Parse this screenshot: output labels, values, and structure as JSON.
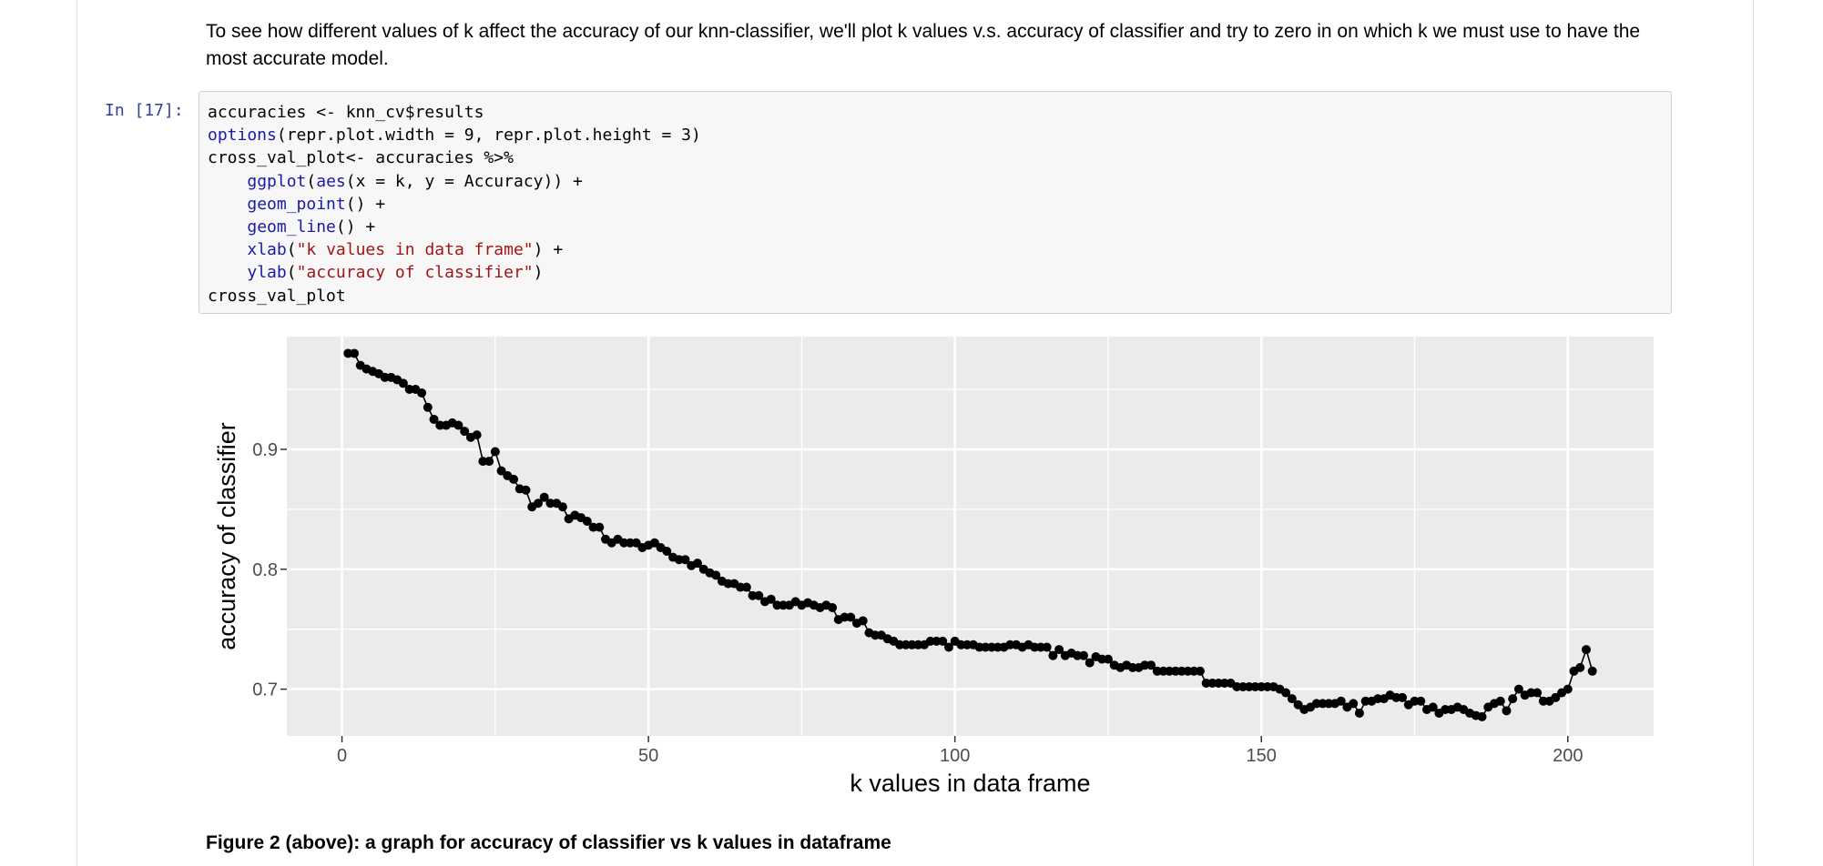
{
  "markdown": {
    "text": "To see how different values of k affect the accuracy of our knn-classifier, we'll plot k values v.s. accuracy of classifier and try to zero in on which k we must use to have the most accurate model."
  },
  "cell": {
    "prompt": "In [17]:",
    "lines": [
      [
        {
          "text": "accuracies <- knn_cv$results"
        }
      ],
      [
        {
          "text": "options",
          "style": "function"
        },
        {
          "text": "(repr.plot.width = 9, repr.plot.height = 3)"
        }
      ],
      [
        {
          "text": "cross_val_plot<- accuracies %>%"
        }
      ],
      [
        {
          "text": "    "
        },
        {
          "text": "ggplot",
          "style": "function"
        },
        {
          "text": "("
        },
        {
          "text": "aes",
          "style": "function"
        },
        {
          "text": "(x = k, y = Accuracy)) +"
        }
      ],
      [
        {
          "text": "    "
        },
        {
          "text": "geom_point",
          "style": "function"
        },
        {
          "text": "() +"
        }
      ],
      [
        {
          "text": "    "
        },
        {
          "text": "geom_line",
          "style": "function"
        },
        {
          "text": "() +"
        }
      ],
      [
        {
          "text": "    "
        },
        {
          "text": "xlab",
          "style": "function"
        },
        {
          "text": "("
        },
        {
          "text": "\"k values in data frame\"",
          "style": "string"
        },
        {
          "text": ") +"
        }
      ],
      [
        {
          "text": "    "
        },
        {
          "text": "ylab",
          "style": "function"
        },
        {
          "text": "("
        },
        {
          "text": "\"accuracy of classifier\"",
          "style": "string"
        },
        {
          "text": ")"
        }
      ],
      [
        {
          "text": "cross_val_plot"
        }
      ]
    ]
  },
  "chart_data": {
    "type": "line",
    "x_label": "k values in data frame",
    "y_label": "accuracy of classifier",
    "xlim": [
      -9,
      214
    ],
    "ylim": [
      0.661,
      0.994
    ],
    "xticks": [
      0,
      50,
      100,
      150,
      200
    ],
    "yticks": [
      0.7,
      0.8,
      0.9
    ],
    "grid": true,
    "color": "#000000",
    "x": [
      1,
      2,
      3,
      4,
      5,
      6,
      7,
      8,
      9,
      10,
      11,
      12,
      13,
      14,
      15,
      16,
      17,
      18,
      19,
      20,
      21,
      22,
      23,
      24,
      25,
      26,
      27,
      28,
      29,
      30,
      31,
      32,
      33,
      34,
      35,
      36,
      37,
      38,
      39,
      40,
      41,
      42,
      43,
      44,
      45,
      46,
      47,
      48,
      49,
      50,
      51,
      52,
      53,
      54,
      55,
      56,
      57,
      58,
      59,
      60,
      61,
      62,
      63,
      64,
      65,
      66,
      67,
      68,
      69,
      70,
      71,
      72,
      73,
      74,
      75,
      76,
      77,
      78,
      79,
      80,
      81,
      82,
      83,
      84,
      85,
      86,
      87,
      88,
      89,
      90,
      91,
      92,
      93,
      94,
      95,
      96,
      97,
      98,
      99,
      100,
      101,
      102,
      103,
      104,
      105,
      106,
      107,
      108,
      109,
      110,
      111,
      112,
      113,
      114,
      115,
      116,
      117,
      118,
      119,
      120,
      121,
      122,
      123,
      124,
      125,
      126,
      127,
      128,
      129,
      130,
      131,
      132,
      133,
      134,
      135,
      136,
      137,
      138,
      139,
      140,
      141,
      142,
      143,
      144,
      145,
      146,
      147,
      148,
      149,
      150,
      151,
      152,
      153,
      154,
      155,
      156,
      157,
      158,
      159,
      160,
      161,
      162,
      163,
      164,
      165,
      166,
      167,
      168,
      169,
      170,
      171,
      172,
      173,
      174,
      175,
      176,
      177,
      178,
      179,
      180,
      181,
      182,
      183,
      184,
      185,
      186,
      187,
      188,
      189,
      190,
      191,
      192,
      193,
      194,
      195,
      196,
      197,
      198,
      199,
      200,
      201,
      202,
      203,
      204
    ],
    "values": [
      0.98,
      0.98,
      0.97,
      0.967,
      0.965,
      0.963,
      0.96,
      0.96,
      0.958,
      0.955,
      0.95,
      0.95,
      0.947,
      0.935,
      0.925,
      0.92,
      0.92,
      0.922,
      0.92,
      0.915,
      0.91,
      0.912,
      0.89,
      0.89,
      0.898,
      0.882,
      0.878,
      0.875,
      0.867,
      0.866,
      0.852,
      0.855,
      0.86,
      0.855,
      0.855,
      0.852,
      0.842,
      0.845,
      0.843,
      0.84,
      0.835,
      0.835,
      0.825,
      0.822,
      0.825,
      0.822,
      0.822,
      0.822,
      0.818,
      0.82,
      0.822,
      0.818,
      0.815,
      0.81,
      0.808,
      0.808,
      0.803,
      0.805,
      0.8,
      0.797,
      0.795,
      0.79,
      0.788,
      0.788,
      0.785,
      0.785,
      0.778,
      0.778,
      0.773,
      0.775,
      0.77,
      0.77,
      0.77,
      0.773,
      0.77,
      0.772,
      0.77,
      0.768,
      0.77,
      0.768,
      0.758,
      0.76,
      0.76,
      0.755,
      0.757,
      0.747,
      0.745,
      0.745,
      0.742,
      0.74,
      0.737,
      0.737,
      0.737,
      0.737,
      0.737,
      0.74,
      0.74,
      0.74,
      0.735,
      0.74,
      0.737,
      0.737,
      0.737,
      0.735,
      0.735,
      0.735,
      0.735,
      0.735,
      0.737,
      0.737,
      0.735,
      0.737,
      0.735,
      0.735,
      0.735,
      0.728,
      0.733,
      0.728,
      0.73,
      0.728,
      0.728,
      0.722,
      0.727,
      0.725,
      0.725,
      0.72,
      0.718,
      0.72,
      0.718,
      0.718,
      0.72,
      0.72,
      0.715,
      0.715,
      0.715,
      0.715,
      0.715,
      0.715,
      0.715,
      0.715,
      0.705,
      0.705,
      0.705,
      0.705,
      0.705,
      0.702,
      0.702,
      0.702,
      0.702,
      0.702,
      0.702,
      0.702,
      0.7,
      0.697,
      0.692,
      0.687,
      0.683,
      0.685,
      0.688,
      0.688,
      0.688,
      0.688,
      0.69,
      0.685,
      0.688,
      0.68,
      0.69,
      0.69,
      0.692,
      0.692,
      0.695,
      0.693,
      0.693,
      0.687,
      0.69,
      0.69,
      0.683,
      0.685,
      0.68,
      0.683,
      0.683,
      0.685,
      0.683,
      0.68,
      0.678,
      0.677,
      0.685,
      0.688,
      0.69,
      0.682,
      0.692,
      0.7,
      0.695,
      0.697,
      0.697,
      0.69,
      0.69,
      0.693,
      0.697,
      0.7,
      0.715,
      0.718,
      0.733,
      0.715
    ]
  },
  "caption": "Figure 2 (above): a graph for accuracy of classifier vs k values in dataframe"
}
